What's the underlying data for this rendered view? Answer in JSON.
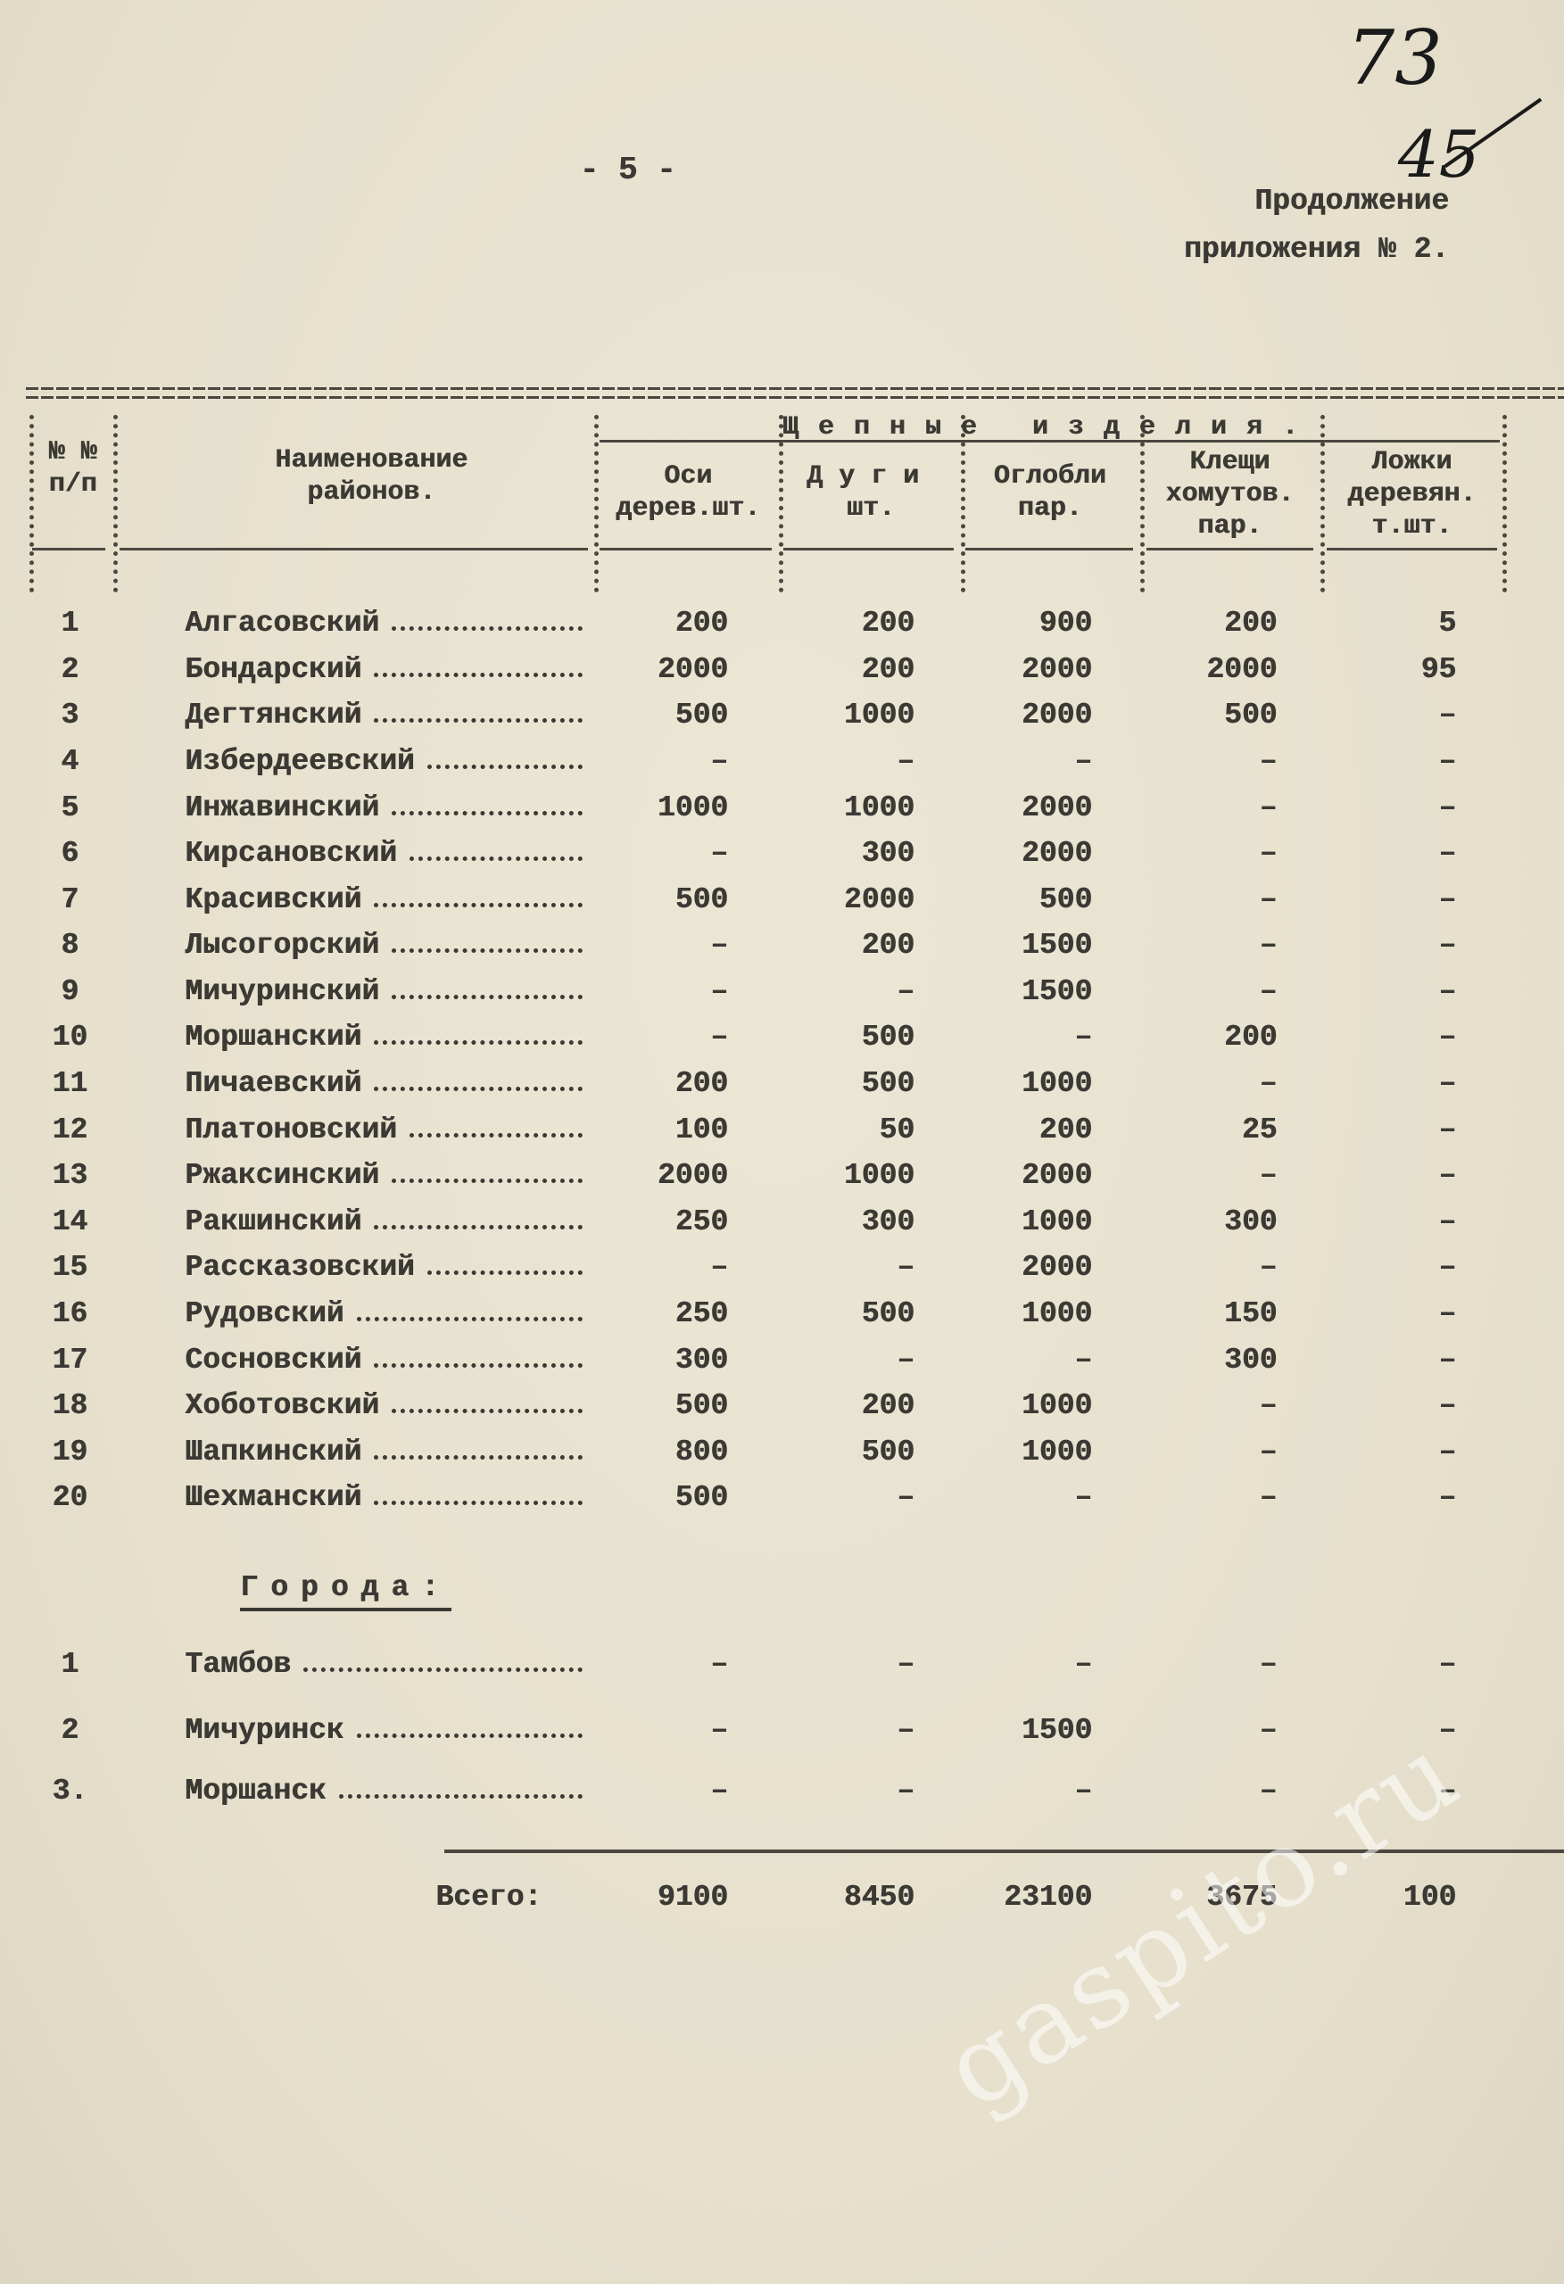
{
  "page_number": "- 5 -",
  "handwritten": [
    "73",
    "45"
  ],
  "header": {
    "lines": [
      "Продолжение",
      "приложения № 2."
    ]
  },
  "table": {
    "number_header": [
      "№ №",
      "п/п"
    ],
    "name_header": [
      "Наименование",
      "районов."
    ],
    "group_header": "Щепные изделия.",
    "column_headers": [
      [
        "Оси",
        "дерев.шт."
      ],
      [
        "Дуги",
        "шт."
      ],
      [
        "Оглобли",
        "пар."
      ],
      [
        "Клещи",
        "хомутов.",
        "пар."
      ],
      [
        "Ложки",
        "деревян.",
        "т.шт."
      ]
    ],
    "rows": [
      [
        "1",
        "Алгасовский",
        "200",
        "200",
        "900",
        "200",
        "5"
      ],
      [
        "2",
        "Бондарский",
        "2000",
        "200",
        "2000",
        "2000",
        "95"
      ],
      [
        "3",
        "Дегтянский",
        "500",
        "1000",
        "2000",
        "500",
        "–"
      ],
      [
        "4",
        "Избердеевский",
        "–",
        "–",
        "–",
        "–",
        "–"
      ],
      [
        "5",
        "Инжавинский",
        "1000",
        "1000",
        "2000",
        "–",
        "–"
      ],
      [
        "6",
        "Кирсановский",
        "–",
        "300",
        "2000",
        "–",
        "–"
      ],
      [
        "7",
        "Красивский",
        "500",
        "2000",
        "500",
        "–",
        "–"
      ],
      [
        "8",
        "Лысогорский",
        "–",
        "200",
        "1500",
        "–",
        "–"
      ],
      [
        "9",
        "Мичуринский",
        "–",
        "–",
        "1500",
        "–",
        "–"
      ],
      [
        "10",
        "Моршанский",
        "–",
        "500",
        "–",
        "200",
        "–"
      ],
      [
        "11",
        "Пичаевский",
        "200",
        "500",
        "1000",
        "–",
        "–"
      ],
      [
        "12",
        "Платоновский",
        "100",
        "50",
        "200",
        "25",
        "–"
      ],
      [
        "13",
        "Ржаксинский",
        "2000",
        "1000",
        "2000",
        "–",
        "–"
      ],
      [
        "14",
        "Ракшинский",
        "250",
        "300",
        "1000",
        "300",
        "–"
      ],
      [
        "15",
        "Рассказовский",
        "–",
        "–",
        "2000",
        "–",
        "–"
      ],
      [
        "16",
        "Рудовский",
        "250",
        "500",
        "1000",
        "150",
        "–"
      ],
      [
        "17",
        "Сосновский",
        "300",
        "–",
        "–",
        "300",
        "–"
      ],
      [
        "18",
        "Хоботовский",
        "500",
        "200",
        "1000",
        "–",
        "–"
      ],
      [
        "19",
        "Шапкинский",
        "800",
        "500",
        "1000",
        "–",
        "–"
      ],
      [
        "20",
        "Шехманский",
        "500",
        "–",
        "–",
        "–",
        "–"
      ]
    ],
    "cities_title": "Города:",
    "city_rows": [
      [
        "1",
        "Тамбов",
        "–",
        "–",
        "–",
        "–",
        "–"
      ],
      [
        "2",
        "Мичуринск",
        "–",
        "–",
        "1500",
        "–",
        "–"
      ],
      [
        "3.",
        "Моршанск",
        "–",
        "–",
        "–",
        "–",
        "–"
      ]
    ],
    "total_label": "Всего:",
    "totals": [
      "9100",
      "8450",
      "23100",
      "3675",
      "100"
    ]
  },
  "watermark": "gaspito.ru"
}
